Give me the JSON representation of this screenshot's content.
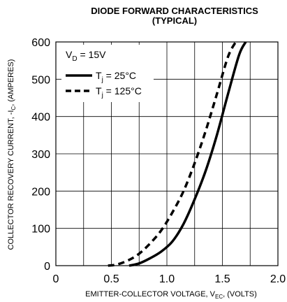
{
  "chart_data": {
    "type": "line",
    "title": "DIODE FORWARD CHARACTERISTICS",
    "subtitle": "(TYPICAL)",
    "xlabel": {
      "main": "EMITTER-COLLECTOR VOLTAGE, V",
      "sub": "EC",
      "tail": ", (VOLTS)"
    },
    "ylabel": {
      "main": "COLLECTOR RECOVERY CURRENT, -I",
      "sub": "C",
      "tail": ", (AMPERES)"
    },
    "xlim": [
      0,
      2.0
    ],
    "ylim": [
      0,
      600
    ],
    "x_ticks": [
      "0",
      "0.5",
      "1.0",
      "1.5",
      "2.0"
    ],
    "y_ticks": [
      "0",
      "100",
      "200",
      "300",
      "400",
      "500",
      "600"
    ],
    "grid": true,
    "legend_position": "top-left",
    "legend_header": {
      "main": "V",
      "sub": "D",
      "tail": " = 15V"
    },
    "series": [
      {
        "label_main": "T",
        "label_sub": "j",
        "label_tail": " = 25°C",
        "style": "solid",
        "x": [
          0.66,
          0.75,
          0.85,
          0.95,
          1.05,
          1.15,
          1.25,
          1.35,
          1.45,
          1.55,
          1.65,
          1.71
        ],
        "y": [
          0,
          6,
          20,
          38,
          65,
          112,
          178,
          255,
          350,
          460,
          565,
          600
        ]
      },
      {
        "label_main": "T",
        "label_sub": "j",
        "label_tail": " = 125°C",
        "style": "dashed",
        "x": [
          0.47,
          0.55,
          0.65,
          0.75,
          0.85,
          0.95,
          1.05,
          1.15,
          1.25,
          1.35,
          1.45,
          1.55,
          1.62
        ],
        "y": [
          0,
          3,
          14,
          32,
          60,
          95,
          143,
          200,
          275,
          362,
          460,
          560,
          600
        ]
      }
    ]
  }
}
